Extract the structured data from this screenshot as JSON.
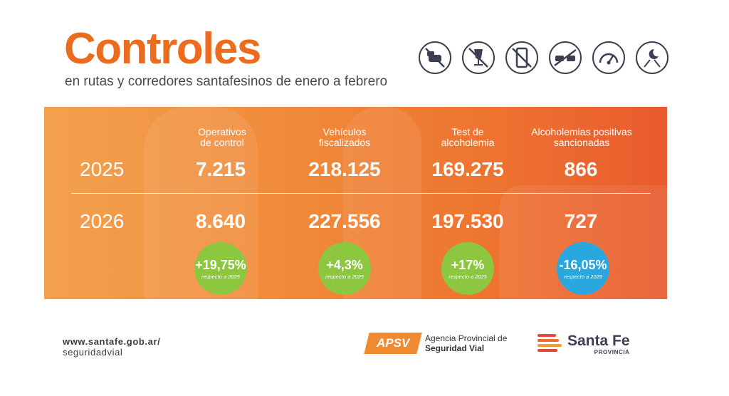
{
  "header": {
    "title": "Controles",
    "subtitle": "en rutas y corredores santafesinos de enero a febrero"
  },
  "icons": [
    "no-speeding-cars-icon",
    "no-alcohol-icon",
    "no-phone-icon",
    "no-overtaking-icon",
    "speedometer-icon",
    "night-driving-icon"
  ],
  "columns": [
    {
      "line1": "Operativos",
      "line2": "de control"
    },
    {
      "line1": "Vehículos",
      "line2": "fiscalizados"
    },
    {
      "line1": "Test de",
      "line2": "alcoholemia"
    },
    {
      "line1": "Alcoholemias positivas",
      "line2": "sancionadas"
    }
  ],
  "rows": [
    {
      "year": "2025",
      "values": [
        "7.215",
        "218.125",
        "169.275",
        "866"
      ]
    },
    {
      "year": "2026",
      "values": [
        "8.640",
        "227.556",
        "197.530",
        "727"
      ]
    }
  ],
  "badges": [
    {
      "pct": "+19,75%",
      "ref": "respecto a 2025",
      "color": "#8dc63f"
    },
    {
      "pct": "+4,3%",
      "ref": "respecto a 2025",
      "color": "#8dc63f"
    },
    {
      "pct": "+17%",
      "ref": "respecto a 2025",
      "color": "#8dc63f"
    },
    {
      "pct": "-16,05%",
      "ref": "respecto a 2025",
      "color": "#29a8e0"
    }
  ],
  "footer": {
    "url_line1": "www.santafe.gob.ar/",
    "url_line2": "seguridadvial",
    "apsv_logo": "APSV",
    "apsv_line1": "Agencia Provincial de",
    "apsv_line2": "Seguridad Vial",
    "sf_name": "Santa Fe",
    "sf_sub": "PROVINCIA"
  },
  "colors": {
    "accent": "#ec6c1f",
    "panel_start": "#f3a14e",
    "panel_end": "#e95a2e",
    "positive": "#8dc63f",
    "negative": "#29a8e0",
    "icon_stroke": "#3c3f52"
  }
}
